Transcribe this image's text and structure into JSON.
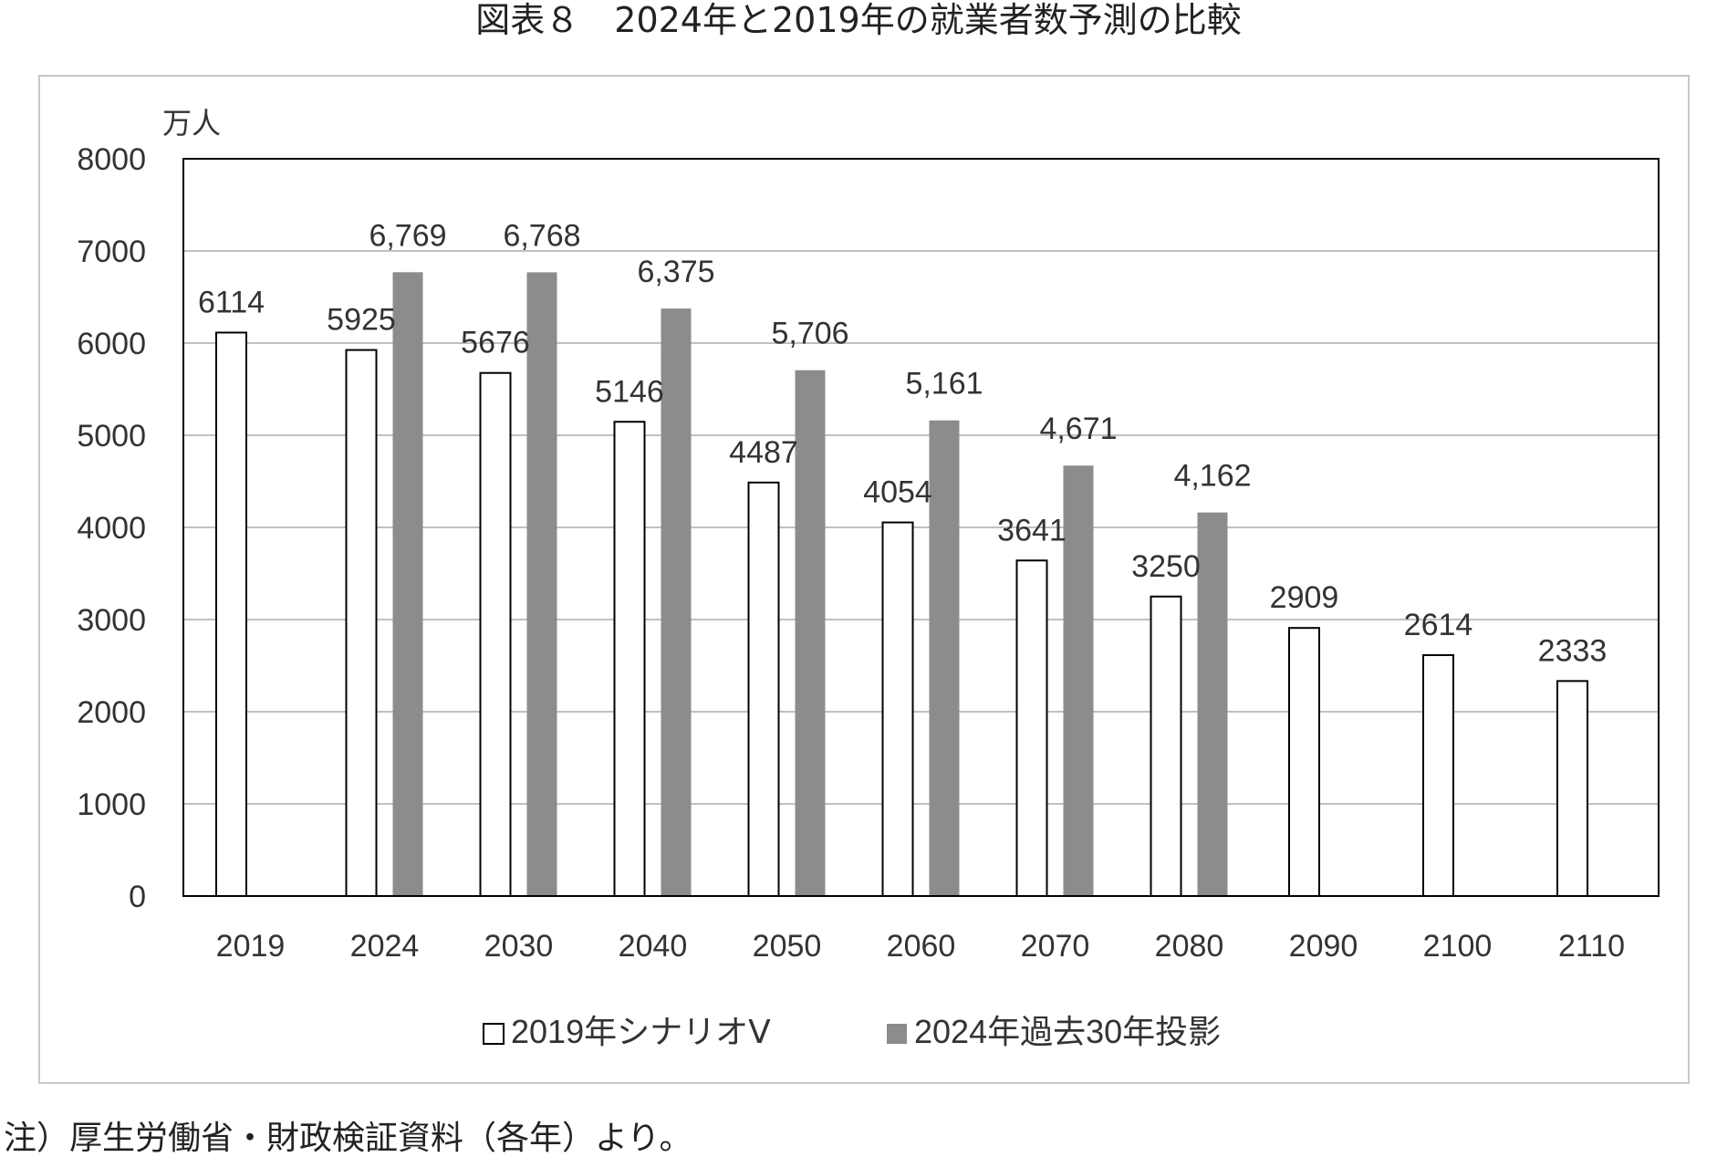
{
  "title": "図表８　2024年と2019年の就業者数予測の比較",
  "note": "注）厚生労働省・財政検証資料（各年）より。",
  "chart_data": {
    "type": "bar",
    "title": "図表８　2024年と2019年の就業者数予測の比較",
    "ylabel": "万人",
    "xlabel": "",
    "ylim": [
      0,
      8000
    ],
    "yticks": [
      0,
      1000,
      2000,
      3000,
      4000,
      5000,
      6000,
      7000,
      8000
    ],
    "grid": true,
    "legend": "bottom",
    "categories": [
      "2019",
      "2024",
      "2030",
      "2040",
      "2050",
      "2060",
      "2070",
      "2080",
      "2090",
      "2100",
      "2110"
    ],
    "series": [
      {
        "name": "2019年シナリオⅤ",
        "color": "#ffffff",
        "values": [
          6114,
          5925,
          5676,
          5146,
          4487,
          4054,
          3641,
          3250,
          2909,
          2614,
          2333
        ],
        "labels": [
          "6114",
          "5925",
          "5676",
          "5146",
          "4487",
          "4054",
          "3641",
          "3250",
          "2909",
          "2614",
          "2333"
        ]
      },
      {
        "name": "2024年過去30年投影",
        "color": "#8c8c8c",
        "values": [
          null,
          6769,
          6768,
          6375,
          5706,
          5161,
          4671,
          4162,
          null,
          null,
          null
        ],
        "labels": [
          null,
          "6,769",
          "6,768",
          "6,375",
          "5,706",
          "5,161",
          "4,671",
          "4,162",
          null,
          null,
          null
        ]
      }
    ]
  }
}
